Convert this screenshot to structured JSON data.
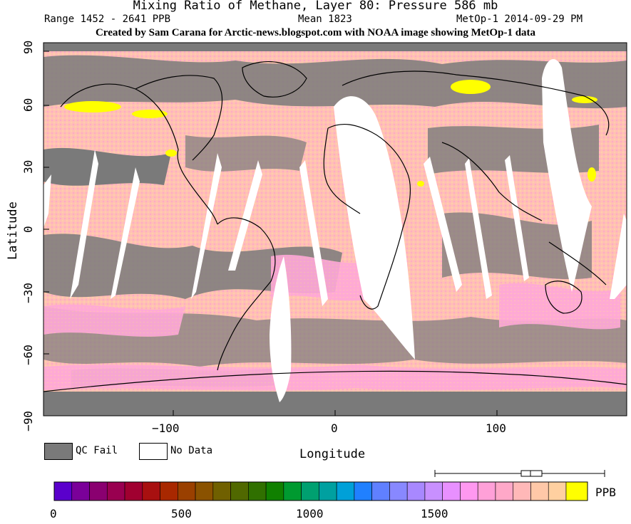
{
  "title": "Mixing Ratio of Methane, Layer 80: Pressure 586 mb",
  "range_text": "Range 1452 - 2641 PPB",
  "mean_text": "Mean 1823",
  "sensor_date_text": "MetOp-1 2014-09-29 PM",
  "credit": "Created by Sam Carana for Arctic-news.blogspot.com with NOAA image showing MetOp-1 data",
  "axes": {
    "x_label": "Longitude",
    "y_label": "Latitude",
    "x_ticks": [
      "−100",
      "0",
      "100"
    ],
    "y_ticks": [
      "90",
      "60",
      "30",
      "0",
      "−30",
      "−60",
      "−90"
    ]
  },
  "legend": {
    "qc_fail_label": "QC Fail",
    "no_data_label": "No Data",
    "qc_fail_color": "#7a7a7a",
    "no_data_color": "#ffffff"
  },
  "colorbar": {
    "unit": "PPB",
    "ticks": [
      "0",
      "500",
      "1000",
      "1500"
    ],
    "colors": [
      "#5a00cc",
      "#7a0099",
      "#8a0070",
      "#990050",
      "#a00030",
      "#a81010",
      "#a82800",
      "#9a4000",
      "#8a5200",
      "#706000",
      "#506800",
      "#307000",
      "#108000",
      "#009a30",
      "#00a070",
      "#00a0a0",
      "#00a0d8",
      "#2080ff",
      "#6080ff",
      "#8888ff",
      "#a888ff",
      "#c890ff",
      "#e890ff",
      "#ff98f0",
      "#ffa0d8",
      "#ffa8c8",
      "#ffb8b8",
      "#ffc8a8",
      "#ffd0a0",
      "#ffff00"
    ]
  },
  "boxplot": {
    "description": "whisker range 1452–2641 with box near mean"
  }
}
